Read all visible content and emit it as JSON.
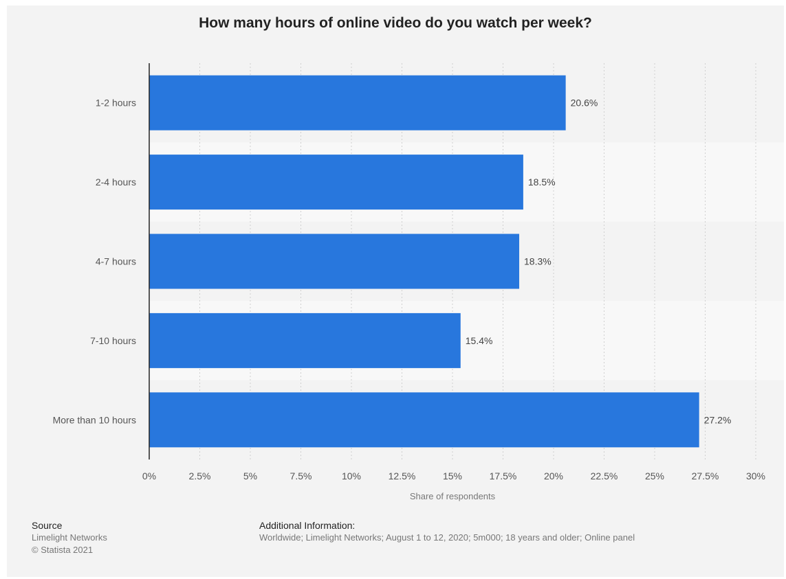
{
  "chart_data": {
    "type": "bar",
    "orientation": "horizontal",
    "title": "How many hours of online video do you watch per week?",
    "categories": [
      "1-2 hours",
      "2-4 hours",
      "4-7 hours",
      "7-10 hours",
      "More than 10 hours"
    ],
    "values": [
      20.6,
      18.5,
      18.3,
      15.4,
      27.2
    ],
    "value_labels": [
      "20.6%",
      "18.5%",
      "18.3%",
      "15.4%",
      "27.2%"
    ],
    "xlabel": "Share of respondents",
    "ylabel": "",
    "xlim": [
      0,
      30
    ],
    "x_ticks": [
      0,
      2.5,
      5,
      7.5,
      10,
      12.5,
      15,
      17.5,
      20,
      22.5,
      25,
      27.5,
      30
    ],
    "x_tick_labels": [
      "0%",
      "2.5%",
      "5%",
      "7.5%",
      "10%",
      "12.5%",
      "15%",
      "17.5%",
      "20%",
      "22.5%",
      "25%",
      "27.5%",
      "30%"
    ],
    "grid": true,
    "bar_color": "#2877dd"
  },
  "footer": {
    "source_heading": "Source",
    "source_lines": [
      "Limelight Networks",
      "© Statista 2021"
    ],
    "info_heading": "Additional Information:",
    "info_text": "Worldwide; Limelight Networks; August 1 to 12, 2020; 5m000; 18 years and older; Online panel"
  }
}
